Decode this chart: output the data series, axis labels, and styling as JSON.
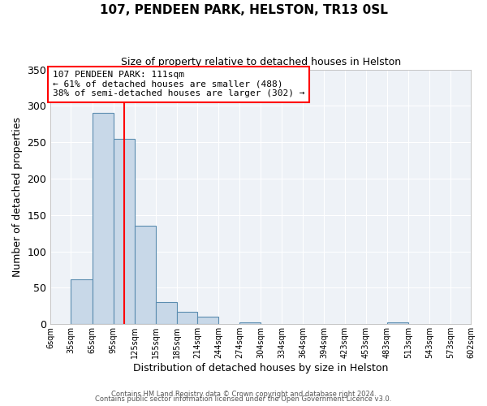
{
  "title": "107, PENDEEN PARK, HELSTON, TR13 0SL",
  "subtitle": "Size of property relative to detached houses in Helston",
  "xlabel": "Distribution of detached houses by size in Helston",
  "ylabel": "Number of detached properties",
  "footer_line1": "Contains HM Land Registry data © Crown copyright and database right 2024.",
  "footer_line2": "Contains public sector information licensed under the Open Government Licence v3.0.",
  "bin_edges": [
    6,
    35,
    65,
    95,
    125,
    155,
    185,
    214,
    244,
    274,
    304,
    334,
    364,
    394,
    423,
    453,
    483,
    513,
    543,
    573,
    602
  ],
  "bin_labels": [
    "6sqm",
    "35sqm",
    "65sqm",
    "95sqm",
    "125sqm",
    "155sqm",
    "185sqm",
    "214sqm",
    "244sqm",
    "274sqm",
    "304sqm",
    "334sqm",
    "364sqm",
    "394sqm",
    "423sqm",
    "453sqm",
    "483sqm",
    "513sqm",
    "543sqm",
    "573sqm",
    "602sqm"
  ],
  "bar_heights": [
    0,
    62,
    290,
    255,
    135,
    30,
    17,
    10,
    0,
    3,
    0,
    0,
    0,
    0,
    0,
    0,
    3,
    0,
    0,
    0
  ],
  "bar_color": "#c8d8e8",
  "bar_edge_color": "#5b8db0",
  "vline_x": 111,
  "vline_color": "red",
  "ylim": [
    0,
    350
  ],
  "yticks": [
    0,
    50,
    100,
    150,
    200,
    250,
    300,
    350
  ],
  "annotation_title": "107 PENDEEN PARK: 111sqm",
  "annotation_line1": "← 61% of detached houses are smaller (488)",
  "annotation_line2": "38% of semi-detached houses are larger (302) →",
  "annotation_box_color": "red",
  "bg_color": "#eef2f7"
}
